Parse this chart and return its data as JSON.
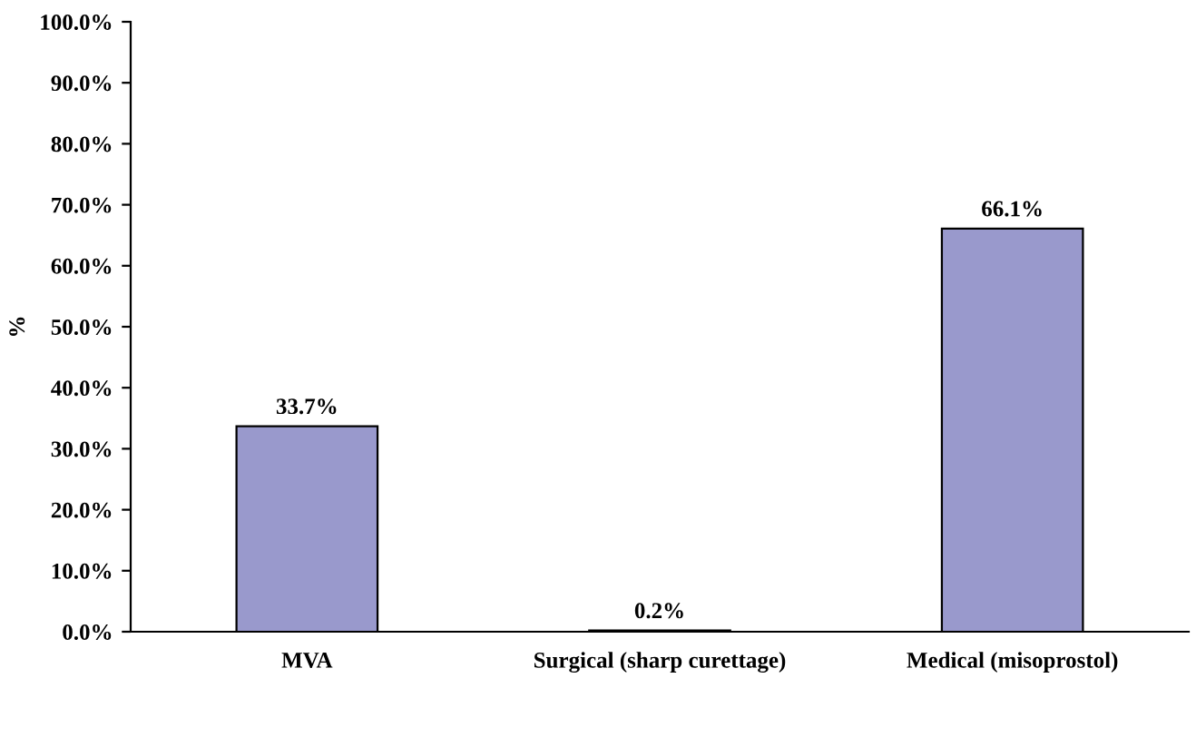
{
  "chart_data": {
    "type": "bar",
    "ylabel": "%",
    "categories": [
      "MVA",
      "Surgical (sharp curettage)",
      "Medical (misoprostol)"
    ],
    "values": [
      33.7,
      0.2,
      66.1
    ],
    "value_labels": [
      "33.7%",
      "0.2%",
      "66.1%"
    ],
    "color": "#9999cc",
    "ylim": [
      0,
      100
    ],
    "yticks": [
      {
        "value": 0,
        "label": "0.0%"
      },
      {
        "value": 10,
        "label": "10.0%"
      },
      {
        "value": 20,
        "label": "20.0%"
      },
      {
        "value": 30,
        "label": "30.0%"
      },
      {
        "value": 40,
        "label": "40.0%"
      },
      {
        "value": 50,
        "label": "50.0%"
      },
      {
        "value": 60,
        "label": "60.0%"
      },
      {
        "value": 70,
        "label": "70.0%"
      },
      {
        "value": 80,
        "label": "80.0%"
      },
      {
        "value": 90,
        "label": "90.0%"
      },
      {
        "value": 100,
        "label": "100.0%"
      }
    ],
    "grid": false,
    "legend": false
  }
}
